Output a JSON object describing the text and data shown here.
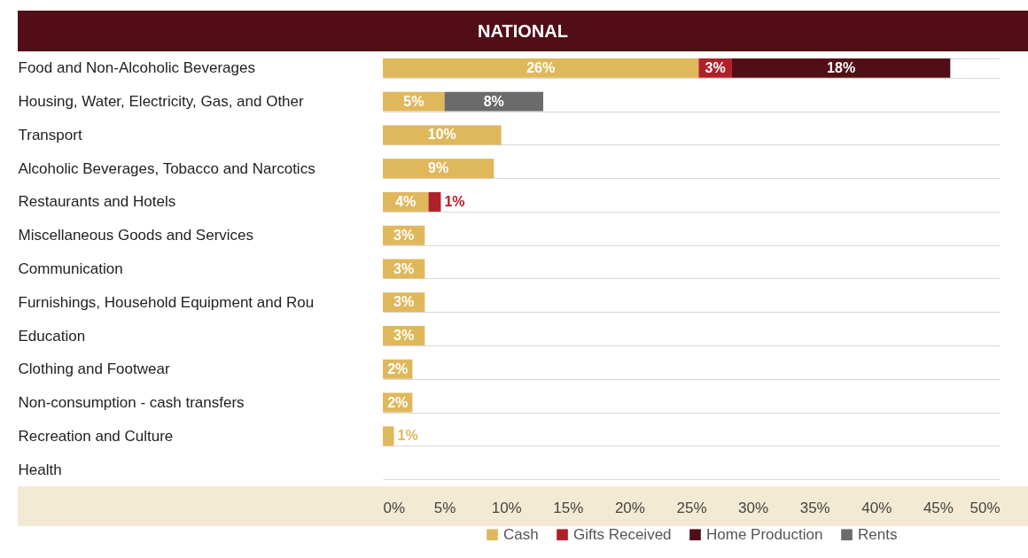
{
  "chart_data": {
    "type": "bar",
    "orientation": "horizontal",
    "stacked": true,
    "title": "NATIONAL",
    "categories": [
      "Food and Non-Alcoholic Beverages",
      "Housing, Water, Electricity, Gas, and Other",
      "Transport",
      "Alcoholic Beverages, Tobacco and Narcotics",
      "Restaurants and Hotels",
      "Miscellaneous Goods and Services",
      "Communication",
      "Furnishings, Household Equipment and Rou",
      "Education",
      "Clothing and Footwear",
      "Non-consumption - cash transfers",
      "Recreation and Culture",
      "Health"
    ],
    "series": [
      {
        "name": "Cash",
        "color": "#e0b85c",
        "values": [
          25.6,
          5.0,
          9.6,
          9.0,
          3.7,
          3.4,
          3.4,
          3.4,
          3.4,
          2.4,
          2.4,
          0.9,
          null
        ],
        "value_labels": [
          "26%",
          "5%",
          "10%",
          "9%",
          "4%",
          "3%",
          "3%",
          "3%",
          "3%",
          "2%",
          "2%",
          "1%",
          null
        ]
      },
      {
        "name": "Gifts Received",
        "color": "#b0202a",
        "values": [
          2.7,
          null,
          null,
          null,
          1.0,
          null,
          null,
          null,
          null,
          null,
          null,
          null,
          null
        ],
        "value_labels": [
          "3%",
          null,
          null,
          null,
          "1%",
          null,
          null,
          null,
          null,
          null,
          null,
          null,
          null
        ]
      },
      {
        "name": "Home Production",
        "color": "#520e17",
        "values": [
          17.7,
          null,
          null,
          null,
          null,
          null,
          null,
          null,
          null,
          null,
          null,
          null,
          null
        ],
        "value_labels": [
          "18%",
          null,
          null,
          null,
          null,
          null,
          null,
          null,
          null,
          null,
          null,
          null,
          null
        ]
      },
      {
        "name": "Rents",
        "color": "#6b6b6b",
        "values": [
          null,
          8.0,
          null,
          null,
          null,
          null,
          null,
          null,
          null,
          null,
          null,
          null,
          null
        ],
        "value_labels": [
          null,
          "8%",
          null,
          null,
          null,
          null,
          null,
          null,
          null,
          null,
          null,
          null,
          null
        ]
      }
    ],
    "xlim": [
      0,
      50
    ],
    "xticks": [
      {
        "value": 0,
        "label": "0%"
      },
      {
        "value": 5,
        "label": "5%"
      },
      {
        "value": 10,
        "label": "10%"
      },
      {
        "value": 15,
        "label": "15%"
      },
      {
        "value": 20,
        "label": "20%"
      },
      {
        "value": 25,
        "label": "25%"
      },
      {
        "value": 30,
        "label": "30%"
      },
      {
        "value": 35,
        "label": "35%"
      },
      {
        "value": 40,
        "label": "40%"
      },
      {
        "value": 45,
        "label": "45%"
      },
      {
        "value": 50,
        "label": "50%"
      }
    ],
    "grid": "y",
    "legend": "bottom"
  }
}
